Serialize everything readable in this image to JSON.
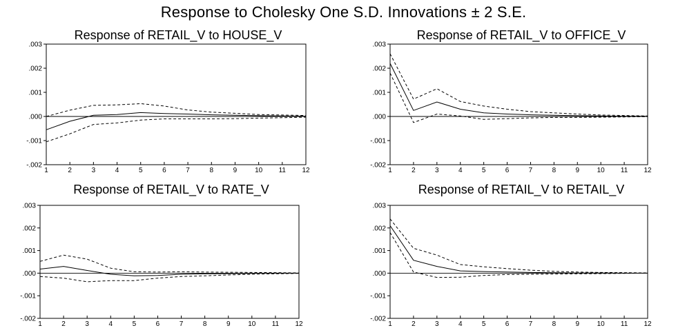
{
  "title": "Response to Cholesky One S.D. Innovations ± 2 S.E.",
  "chart_data": [
    {
      "type": "line",
      "title": "Response of RETAIL_V to HOUSE_V",
      "x": [
        1,
        2,
        3,
        4,
        5,
        6,
        7,
        8,
        9,
        10,
        11,
        12
      ],
      "x_tick_labels": [
        "1",
        "2",
        "3",
        "4",
        "5",
        "6",
        "7",
        "8",
        "9",
        "10",
        "11",
        "12"
      ],
      "ylim": [
        -0.002,
        0.003
      ],
      "y_ticks": [
        -0.002,
        -0.001,
        0.0,
        0.001,
        0.002,
        0.003
      ],
      "y_tick_labels": [
        "-.002",
        "-.001",
        ".000",
        ".001",
        ".002",
        ".003"
      ],
      "series": [
        {
          "style": "solid",
          "values": [
            -0.00055,
            -0.0002,
            5e-05,
            8e-05,
            0.00016,
            0.00012,
            0.0001,
            7e-05,
            5e-05,
            3e-05,
            2e-05,
            1e-05
          ]
        },
        {
          "style": "dashed",
          "values": [
            0.0,
            0.00026,
            0.00046,
            0.00048,
            0.00053,
            0.00043,
            0.00027,
            0.00018,
            0.00013,
            8e-05,
            6e-05,
            4e-05
          ]
        },
        {
          "style": "dashed",
          "values": [
            -0.00105,
            -0.00072,
            -0.00033,
            -0.00027,
            -0.00015,
            -0.0001,
            -0.0001,
            -0.0001,
            -9e-05,
            -7e-05,
            -5e-05,
            -3e-05
          ]
        }
      ],
      "zero_line": true,
      "grid": false
    },
    {
      "type": "line",
      "title": "Response of RETAIL_V to OFFICE_V",
      "x": [
        1,
        2,
        3,
        4,
        5,
        6,
        7,
        8,
        9,
        10,
        11,
        12
      ],
      "x_tick_labels": [
        "1",
        "2",
        "3",
        "4",
        "5",
        "6",
        "7",
        "8",
        "9",
        "10",
        "11",
        "12"
      ],
      "ylim": [
        -0.002,
        0.003
      ],
      "y_ticks": [
        -0.002,
        -0.001,
        0.0,
        0.001,
        0.002,
        0.003
      ],
      "y_tick_labels": [
        "-.002",
        "-.001",
        ".000",
        ".001",
        ".002",
        ".003"
      ],
      "series": [
        {
          "style": "solid",
          "values": [
            0.0022,
            0.00025,
            0.0006,
            0.0003,
            0.00015,
            0.0001,
            7e-05,
            5e-05,
            3e-05,
            2e-05,
            1e-05,
            1e-05
          ]
        },
        {
          "style": "dashed",
          "values": [
            0.0026,
            0.00072,
            0.00115,
            0.00062,
            0.00043,
            0.0003,
            0.0002,
            0.00015,
            0.0001,
            6e-05,
            4e-05,
            2e-05
          ]
        },
        {
          "style": "dashed",
          "values": [
            0.0018,
            -0.00025,
            0.0001,
            2e-05,
            -0.00012,
            -9e-05,
            -6e-05,
            -4e-05,
            -4e-05,
            -3e-05,
            -2e-05,
            -1e-05
          ]
        }
      ],
      "zero_line": true,
      "grid": false
    },
    {
      "type": "line",
      "title": "Response of RETAIL_V to RATE_V",
      "x": [
        1,
        2,
        3,
        4,
        5,
        6,
        7,
        8,
        9,
        10,
        11,
        12
      ],
      "x_tick_labels": [
        "1",
        "2",
        "3",
        "4",
        "5",
        "6",
        "7",
        "8",
        "9",
        "10",
        "11",
        "12"
      ],
      "ylim": [
        -0.002,
        0.003
      ],
      "y_ticks": [
        -0.002,
        -0.001,
        0.0,
        0.001,
        0.002,
        0.003
      ],
      "y_tick_labels": [
        "-.002",
        "-.001",
        ".000",
        ".001",
        ".002",
        ".003"
      ],
      "series": [
        {
          "style": "solid",
          "values": [
            0.00018,
            0.0003,
            0.00012,
            -5e-05,
            -0.00012,
            -0.0001,
            -5e-05,
            -3e-05,
            -2e-05,
            -1e-05,
            0.0,
            0.0
          ]
        },
        {
          "style": "dashed",
          "values": [
            0.00052,
            0.0008,
            0.00062,
            0.00022,
            6e-05,
            5e-05,
            6e-05,
            5e-05,
            4e-05,
            3e-05,
            2e-05,
            1e-05
          ]
        },
        {
          "style": "dashed",
          "values": [
            -0.00015,
            -0.00022,
            -0.00038,
            -0.00033,
            -0.00033,
            -0.00022,
            -0.00015,
            -0.00012,
            -8e-05,
            -5e-05,
            -3e-05,
            -1e-05
          ]
        }
      ],
      "zero_line": true,
      "grid": false
    },
    {
      "type": "line",
      "title": "Response of RETAIL_V to RETAIL_V",
      "x": [
        1,
        2,
        3,
        4,
        5,
        6,
        7,
        8,
        9,
        10,
        11,
        12
      ],
      "x_tick_labels": [
        "1",
        "2",
        "3",
        "4",
        "5",
        "6",
        "7",
        "8",
        "9",
        "10",
        "11",
        "12"
      ],
      "ylim": [
        -0.002,
        0.003
      ],
      "y_ticks": [
        -0.002,
        -0.001,
        0.0,
        0.001,
        0.002,
        0.003
      ],
      "y_tick_labels": [
        "-.002",
        "-.001",
        ".000",
        ".001",
        ".002",
        ".003"
      ],
      "series": [
        {
          "style": "solid",
          "values": [
            0.0021,
            0.00057,
            0.0003,
            0.0001,
            7e-05,
            5e-05,
            3e-05,
            2e-05,
            1e-05,
            1e-05,
            0.0,
            0.0
          ]
        },
        {
          "style": "dashed",
          "values": [
            0.0024,
            0.0011,
            0.0008,
            0.00038,
            0.00028,
            0.0002,
            0.00013,
            8e-05,
            5e-05,
            3e-05,
            2e-05,
            1e-05
          ]
        },
        {
          "style": "dashed",
          "values": [
            0.0018,
            5e-05,
            -0.00019,
            -0.00018,
            -0.0001,
            -6e-05,
            -5e-05,
            -4e-05,
            -3e-05,
            -2e-05,
            -1e-05,
            0.0
          ]
        }
      ],
      "zero_line": true,
      "grid": false
    }
  ]
}
